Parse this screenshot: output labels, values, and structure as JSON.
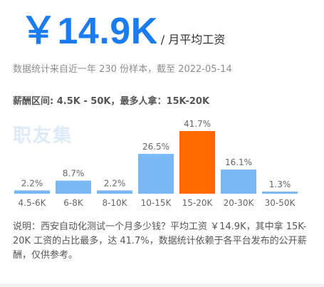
{
  "headline": {
    "value": "￥14.9K",
    "unit": "/ 月平均工资"
  },
  "stats_line": "数据统计来自近一年 230 份样本，截至 2022-05-14",
  "range_line": "薪酬区间: 4.5K - 50K，最多人拿：15K-20K",
  "watermark": "职友集",
  "description": "说明：西安自动化测试一个月多少钱？平均工资 ￥14.9K，其中拿 15K-20K 工资的占比最多，达 41.7%，数据统计依赖于各平台发布的公开薪酬，仅供参考。",
  "colors": {
    "accent": "#1a7cf0",
    "bar": "#7ab8f5",
    "highlight": "#ff6a00"
  },
  "chart_data": {
    "type": "bar",
    "categories": [
      "4.5-6K",
      "6-8K",
      "8-10K",
      "10-15K",
      "15-20K",
      "20-30K",
      "30-50K"
    ],
    "values": [
      2.2,
      8.7,
      2.2,
      26.5,
      41.7,
      16.1,
      1.3
    ],
    "value_labels": [
      "2.2%",
      "8.7%",
      "2.2%",
      "26.5%",
      "41.7%",
      "16.1%",
      "1.3%"
    ],
    "highlight_category": "15-20K",
    "ylim": [
      0,
      41.7
    ],
    "grid": false,
    "legend": "none"
  }
}
